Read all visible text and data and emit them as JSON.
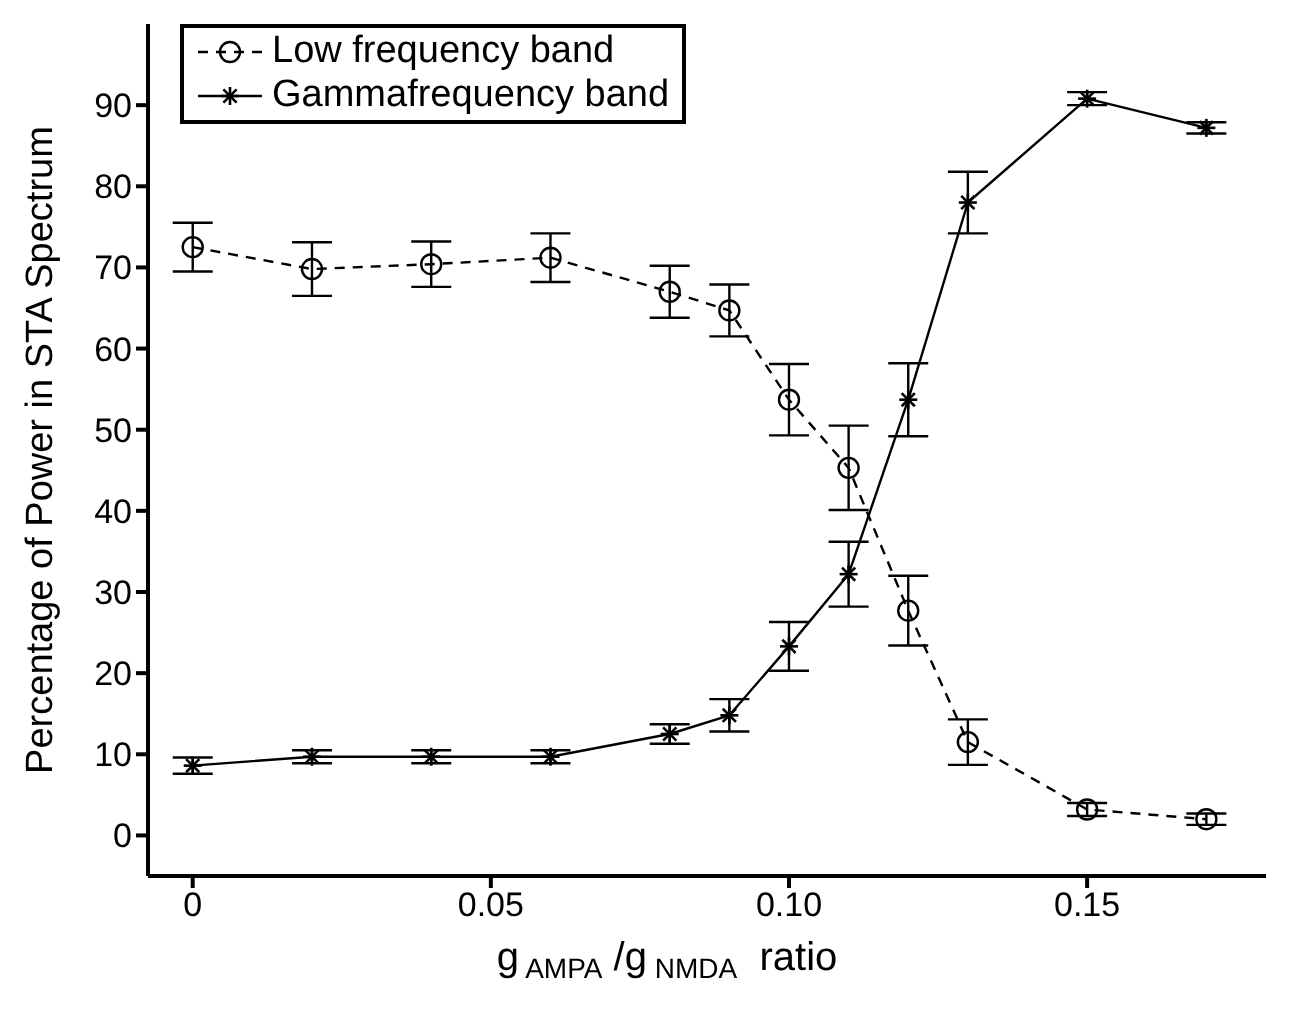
{
  "chart_data": {
    "type": "line",
    "xlabel": "g$_{AMPA}$ /g$_{NMDA}$  ratio",
    "ylabel": "Percentage of Power in STA Spectrum",
    "x": [
      0,
      0.02,
      0.04,
      0.06,
      0.08,
      0.09,
      0.1,
      0.11,
      0.12,
      0.13,
      0.15,
      0.17
    ],
    "series": [
      {
        "name": "Low frequency band",
        "color": "#000000",
        "marker": "circle",
        "line_style": "dashed",
        "values": [
          72.5,
          69.8,
          70.4,
          71.2,
          67,
          64.7,
          53.7,
          45.3,
          27.7,
          11.5,
          3.2,
          2
        ],
        "errors": [
          3,
          3.3,
          2.8,
          3,
          3.2,
          3.2,
          4.4,
          5.2,
          4.3,
          2.8,
          0.8,
          0.7
        ]
      },
      {
        "name": "Gammafrequency band",
        "color": "#000000",
        "marker": "cross",
        "line_style": "solid",
        "values": [
          8.6,
          9.7,
          9.7,
          9.7,
          12.5,
          14.8,
          23.3,
          32.2,
          53.7,
          78,
          90.8,
          87.2
        ],
        "errors": [
          1,
          0.8,
          0.8,
          0.8,
          1.2,
          2,
          3,
          4,
          4.5,
          3.8,
          0.8,
          0.7
        ]
      }
    ],
    "xlim": [
      -0.0075,
      0.18
    ],
    "xticks": [
      0,
      0.05,
      {
        "value": 0.1,
        "label": "0.10"
      },
      0.15
    ],
    "ylim": [
      -5,
      100
    ],
    "yticks": [
      0,
      10,
      20,
      30,
      40,
      50,
      60,
      70,
      80,
      90
    ],
    "grid": false,
    "legend": "top left"
  }
}
